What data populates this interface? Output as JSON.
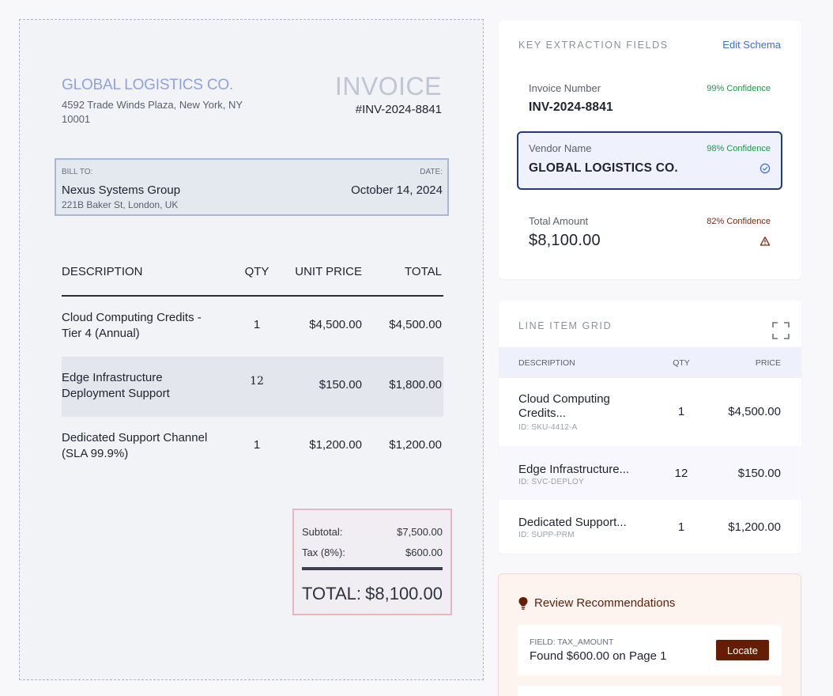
{
  "invoice": {
    "vendor_name": "GLOBAL LOGISTICS CO.",
    "vendor_address": "4592 Trade Winds Plaza, New York, NY 10001",
    "title": "INVOICE",
    "number": "#INV-2024-8841",
    "bill_to_label": "BILL TO:",
    "bill_to_name": "Nexus Systems Group",
    "bill_to_address": "221B Baker St, London, UK",
    "date_label": "DATE:",
    "date": "October 14, 2024",
    "columns": {
      "description": "DESCRIPTION",
      "qty": "QTY",
      "unit_price": "UNIT PRICE",
      "total": "TOTAL"
    },
    "items": [
      {
        "description": "Cloud Computing Credits - Tier 4 (Annual)",
        "qty": "1",
        "unit_price": "$4,500.00",
        "total": "$4,500.00"
      },
      {
        "description": "Edge Infrastructure Deployment Support",
        "qty": "12",
        "unit_price": "$150.00",
        "total": "$1,800.00"
      },
      {
        "description": "Dedicated Support Channel (SLA 99.9%)",
        "qty": "1",
        "unit_price": "$1,200.00",
        "total": "$1,200.00"
      }
    ],
    "subtotal_label": "Subtotal:",
    "subtotal": "$7,500.00",
    "tax_label": "Tax (8%):",
    "tax": "$600.00",
    "total_label": "TOTAL:",
    "total": "$8,100.00"
  },
  "key_fields": {
    "title": "KEY EXTRACTION FIELDS",
    "edit_label": "Edit Schema",
    "fields": [
      {
        "label": "Invoice Number",
        "confidence": "99% Confidence",
        "value": "INV-2024-8841",
        "conf_color": "#1a9a44"
      },
      {
        "label": "Vendor Name",
        "confidence": "98% Confidence",
        "value": "GLOBAL LOGISTICS CO.",
        "conf_color": "#1a9a44",
        "icon": "verified-check-icon"
      },
      {
        "label": "Total Amount",
        "confidence": "82% Confidence",
        "value": "$8,100.00",
        "conf_color": "#7a2a10",
        "icon": "warning-triangle-icon"
      }
    ]
  },
  "line_grid": {
    "title": "LINE ITEM GRID",
    "columns": {
      "description": "DESCRIPTION",
      "qty": "QTY",
      "price": "PRICE"
    },
    "rows": [
      {
        "description": "Cloud Computing Credits...",
        "id": "ID: SKU-4412-A",
        "qty": "1",
        "price": "$4,500.00"
      },
      {
        "description": "Edge Infrastructure...",
        "id": "ID: SVC-DEPLOY",
        "qty": "12",
        "price": "$150.00"
      },
      {
        "description": "Dedicated Support...",
        "id": "ID: SUPP-PRM",
        "qty": "1",
        "price": "$1,200.00"
      }
    ]
  },
  "review": {
    "title": "Review Recommendations",
    "items": [
      {
        "field": "FIELD: TAX_AMOUNT",
        "text": "Found $600.00 on Page 1",
        "action": "Locate"
      }
    ]
  },
  "colors": {
    "accent": "#1f3b7a",
    "link": "#3b6dd6",
    "success": "#1a9a44",
    "warning": "#7a2a10",
    "action": "#631e05"
  }
}
